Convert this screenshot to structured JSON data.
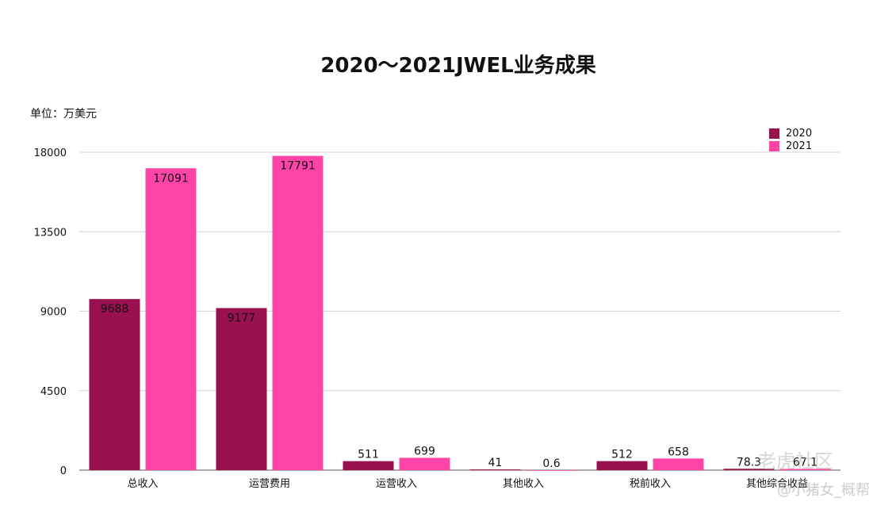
{
  "chart_data": {
    "type": "bar",
    "title": "2020～2021JWEL业务成果",
    "unit_label": "单位：万美元",
    "categories": [
      "总收入",
      "运营费用",
      "运营收入",
      "其他收入",
      "税前收入",
      "其他综合收益"
    ],
    "series": [
      {
        "name": "2020",
        "color": "#9a1150",
        "values": [
          9688,
          9177,
          511,
          41,
          512,
          78.3
        ],
        "labels": [
          "9688",
          "9177",
          "511",
          "41",
          "512",
          "78.3"
        ]
      },
      {
        "name": "2021",
        "color": "#ff44a8",
        "values": [
          17091,
          17791,
          699,
          0.6,
          658,
          67.1
        ],
        "labels": [
          "17091",
          "17791",
          "699",
          "0.6",
          "658",
          "67.1"
        ]
      }
    ],
    "yticks": [
      "0",
      "4500",
      "9000",
      "13500",
      "18000"
    ],
    "ylim": [
      0,
      18000
    ],
    "grid": true,
    "legend_position": "top-right"
  },
  "watermark": {
    "main": "老虎社区",
    "sub": "@小猪女_概帮"
  }
}
